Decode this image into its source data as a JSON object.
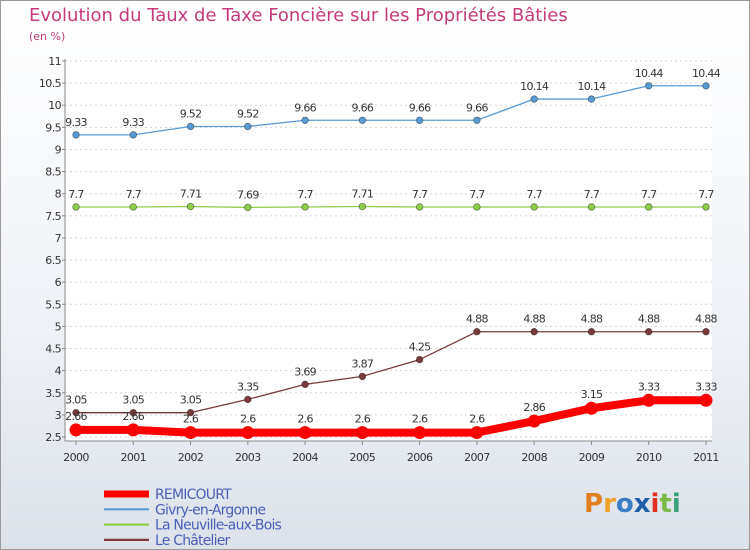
{
  "title": "Evolution du Taux de Taxe Foncière sur les Propriétés Bâties",
  "subtitle": "(en %)",
  "logo": {
    "text": "Proxiti",
    "colors": [
      "#e07f1f",
      "#f0a12a",
      "#3a7fc4",
      "#1f5fa8",
      "#e03020",
      "#7ab84a",
      "#3aa07a"
    ]
  },
  "chart_data": {
    "type": "line",
    "x": [
      2000,
      2001,
      2002,
      2003,
      2004,
      2005,
      2006,
      2007,
      2008,
      2009,
      2010,
      2011
    ],
    "ylim": [
      2.5,
      11
    ],
    "yticks": [
      "2.5",
      "3",
      "3.5",
      "4",
      "4.5",
      "5",
      "5.5",
      "6",
      "6.5",
      "7",
      "7.5",
      "8",
      "8.5",
      "9",
      "9.5",
      "10",
      "10.5",
      "11"
    ],
    "legend_position": "bottom-left",
    "series": [
      {
        "name": "REMICOURT",
        "color": "#ff0000",
        "values": [
          2.66,
          2.66,
          2.6,
          2.6,
          2.6,
          2.6,
          2.6,
          2.6,
          2.86,
          3.15,
          3.33,
          3.33
        ],
        "labels": [
          "2.66",
          "2.66",
          "2.6",
          "2.6",
          "2.6",
          "2.6",
          "2.6",
          "2.6",
          "2.86",
          "3.15",
          "3.33",
          "3.33"
        ]
      },
      {
        "name": "Givry-en-Argonne",
        "color": "#5b9bd5",
        "values": [
          9.33,
          9.33,
          9.52,
          9.52,
          9.66,
          9.66,
          9.66,
          9.66,
          10.14,
          10.14,
          10.44,
          10.44
        ],
        "labels": [
          "9.33",
          "9.33",
          "9.52",
          "9.52",
          "9.66",
          "9.66",
          "9.66",
          "9.66",
          "10.14",
          "10.14",
          "10.44",
          "10.44"
        ]
      },
      {
        "name": "La Neuville-aux-Bois",
        "color": "#8fce4a",
        "values": [
          7.7,
          7.7,
          7.71,
          7.69,
          7.7,
          7.71,
          7.7,
          7.7,
          7.7,
          7.7,
          7.7,
          7.7
        ],
        "labels": [
          "7.7",
          "7.7",
          "7.71",
          "7.69",
          "7.7",
          "7.71",
          "7.7",
          "7.7",
          "7.7",
          "7.7",
          "7.7",
          "7.7"
        ]
      },
      {
        "name": "Le Châtelier",
        "color": "#7a3a3a",
        "values": [
          3.05,
          3.05,
          3.05,
          3.35,
          3.69,
          3.87,
          4.25,
          4.88,
          4.88,
          4.88,
          4.88,
          4.88
        ],
        "labels": [
          "3.05",
          "3.05",
          "3.05",
          "3.35",
          "3.69",
          "3.87",
          "4.25",
          "4.88",
          "4.88",
          "4.88",
          "4.88",
          "4.88"
        ]
      }
    ]
  }
}
